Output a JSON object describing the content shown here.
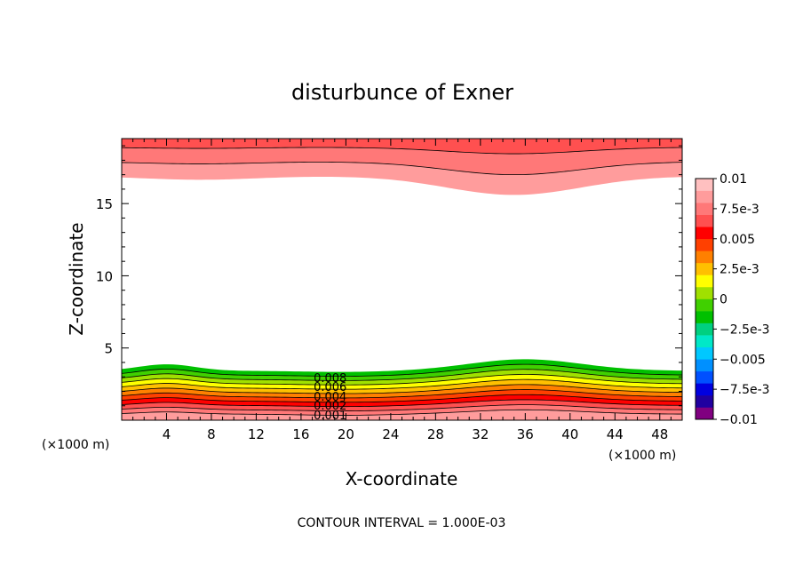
{
  "chart_data": {
    "type": "heatmap",
    "title": "disturbunce of Exner",
    "xlabel": "X-coordinate",
    "ylabel": "Z-coordinate",
    "x_unit_left": "(×1000 m)",
    "x_unit_right": "(×1000 m)",
    "footer": "CONTOUR INTERVAL = 1.000E-03",
    "xlim": [
      0,
      50
    ],
    "ylim": [
      0,
      19.5
    ],
    "x_ticks": [
      "4",
      "8",
      "12",
      "16",
      "20",
      "24",
      "28",
      "32",
      "36",
      "40",
      "44",
      "48"
    ],
    "y_ticks": [
      "5",
      "10",
      "15"
    ],
    "y_tick_values": [
      5,
      10,
      15
    ],
    "contour_interval": 0.001,
    "contour_labels": [
      "0.008",
      "0.006",
      "0.004",
      "0.002",
      "0.001"
    ],
    "colorbar": {
      "range": [
        -0.01,
        0.01
      ],
      "labels": [
        "0.01",
        "7.5e-3",
        "0.005",
        "2.5e-3",
        "0",
        "-2.5e-3",
        "-0.005",
        "-7.5e-3",
        "-0.01"
      ],
      "colors": [
        "#800080",
        "#2000a0",
        "#0000e0",
        "#0050ff",
        "#0090ff",
        "#00c8ff",
        "#00e8c8",
        "#00d080",
        "#00c000",
        "#40d000",
        "#a0e000",
        "#ffff00",
        "#ffc000",
        "#ff8000",
        "#ff4000",
        "#ff0000",
        "#ff5050",
        "#ff7878",
        "#ff9c9c",
        "#ffc0c0"
      ]
    },
    "field_colors": {
      "bottom_bands": [
        "#00c000",
        "#40d000",
        "#a0e000",
        "#ffff00",
        "#ffc000",
        "#ff8000",
        "#ff4000",
        "#ff0000",
        "#ff5050",
        "#ff7878",
        "#ff9c9c"
      ],
      "top_bands": [
        "#ff9c9c",
        "#ff7878",
        "#ff5050"
      ]
    }
  }
}
